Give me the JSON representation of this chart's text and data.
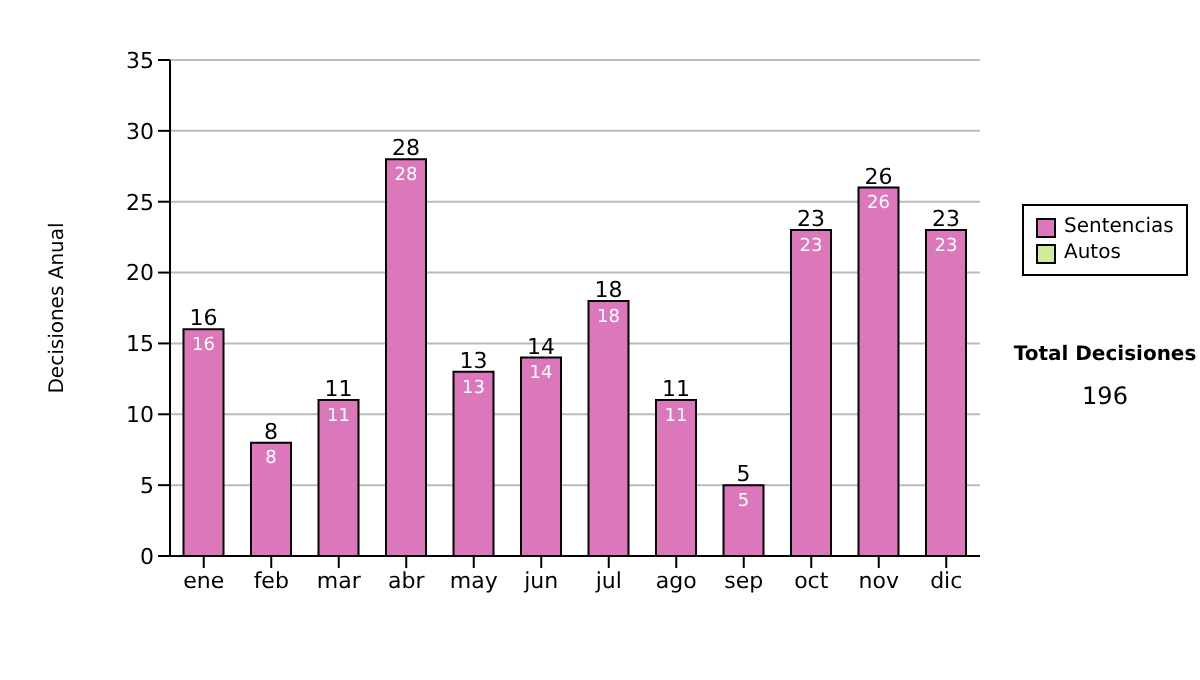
{
  "chart_data": {
    "type": "bar",
    "ylabel": "Decisiones Anual",
    "categories": [
      "ene",
      "feb",
      "mar",
      "abr",
      "may",
      "jun",
      "jul",
      "ago",
      "sep",
      "oct",
      "nov",
      "dic"
    ],
    "series": [
      {
        "name": "Sentencias",
        "color": "#dd77bb",
        "values": [
          16,
          8,
          11,
          28,
          13,
          14,
          18,
          11,
          5,
          23,
          26,
          23
        ]
      },
      {
        "name": "Autos",
        "color": "#ccee99",
        "values": [
          null,
          null,
          null,
          null,
          null,
          null,
          null,
          null,
          null,
          null,
          null,
          null
        ]
      }
    ],
    "stacked": true,
    "data_labels": true,
    "totals": [
      "16",
      "8",
      "11",
      "28",
      "13",
      "14",
      "18",
      "11",
      "5",
      "23",
      "26",
      "23"
    ],
    "ylim": [
      0,
      35
    ],
    "yticks": [
      0,
      5,
      10,
      15,
      20,
      25,
      30,
      35
    ],
    "grid": "y",
    "legend": "right",
    "annotations": [
      "Total Decisiones",
      "196"
    ]
  }
}
